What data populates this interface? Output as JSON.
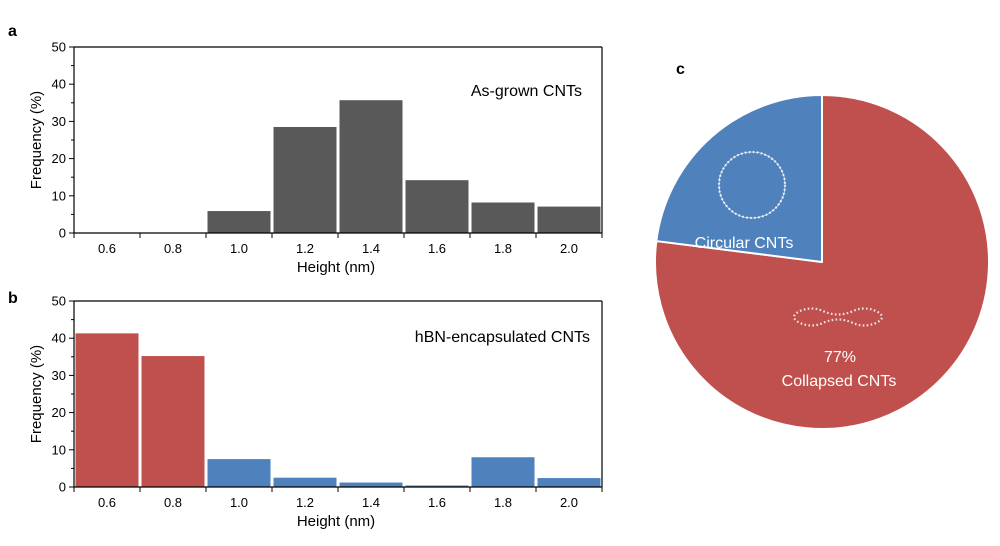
{
  "chart_data": [
    {
      "panel": "a",
      "type": "bar",
      "annotation": "As-grown CNTs",
      "xlabel": "Height (nm)",
      "ylabel": "Frequency (%)",
      "ylim": [
        0,
        50
      ],
      "yticks": [
        0,
        10,
        20,
        30,
        40,
        50
      ],
      "x_tick_labels": [
        "0.6",
        "0.8",
        "1.0",
        "1.2",
        "1.4",
        "1.6",
        "1.8",
        "2.0"
      ],
      "bin_width": 0.2,
      "categories": [
        0.6,
        0.8,
        1.0,
        1.2,
        1.4,
        1.6,
        1.8,
        2.0
      ],
      "values": [
        0,
        0,
        5.9,
        28.5,
        35.7,
        14.2,
        8.2,
        7.1
      ],
      "bar_colors": [
        "#595959",
        "#595959",
        "#595959",
        "#595959",
        "#595959",
        "#595959",
        "#595959",
        "#595959"
      ]
    },
    {
      "panel": "b",
      "type": "bar",
      "annotation": "hBN-encapsulated CNTs",
      "xlabel": "Height (nm)",
      "ylabel": "Frequency (%)",
      "ylim": [
        0,
        50
      ],
      "yticks": [
        0,
        10,
        20,
        30,
        40,
        50
      ],
      "x_tick_labels": [
        "0.6",
        "0.8",
        "1.0",
        "1.2",
        "1.4",
        "1.6",
        "1.8",
        "2.0"
      ],
      "bin_width": 0.2,
      "categories": [
        0.6,
        0.8,
        1.0,
        1.2,
        1.4,
        1.6,
        1.8,
        2.0
      ],
      "values": [
        41.3,
        35.2,
        7.5,
        2.5,
        1.2,
        0.4,
        8.0,
        2.4
      ],
      "bar_colors": [
        "#c0504d",
        "#c0504d",
        "#4f81bd",
        "#4f81bd",
        "#4f81bd",
        "#4f81bd",
        "#4f81bd",
        "#4f81bd"
      ]
    },
    {
      "panel": "c",
      "type": "pie",
      "slices": [
        {
          "label": "Collapsed CNTs",
          "value": 77,
          "percent_label": "77%",
          "color": "#c0504d",
          "icon": "collapsed-nanotube-icon"
        },
        {
          "label": "Circular CNTs",
          "value": 23,
          "color": "#4f81bd",
          "icon": "circular-nanotube-icon"
        }
      ]
    }
  ]
}
